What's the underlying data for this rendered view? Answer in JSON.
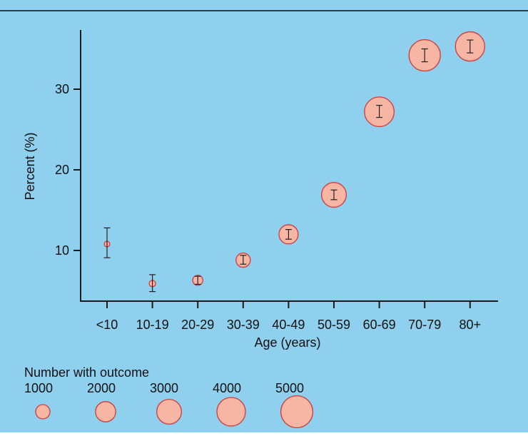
{
  "colors": {
    "background": "#8fd0ee",
    "bubble_fill": "#f7b6a4",
    "bubble_stroke": "#d23a3a",
    "axis": "#1a1a1a",
    "top_rule": "#111111"
  },
  "chart_data": {
    "type": "scatter",
    "title": "",
    "xlabel": "Age (years)",
    "ylabel": "Percent (%)",
    "categories": [
      "<10",
      "10-19",
      "20-29",
      "30-39",
      "40-49",
      "50-59",
      "60-69",
      "70-79",
      "80+"
    ],
    "ylim": [
      3.5,
      38
    ],
    "yticks": [
      10,
      20,
      30
    ],
    "values": [
      10.8,
      5.9,
      6.3,
      8.8,
      12.0,
      16.9,
      27.2,
      34.2,
      35.3
    ],
    "ci_low": [
      9.1,
      4.9,
      5.8,
      8.3,
      11.4,
      16.3,
      26.5,
      33.4,
      34.5
    ],
    "ci_high": [
      12.8,
      7.0,
      6.8,
      9.4,
      12.6,
      17.5,
      28.0,
      35.0,
      36.1
    ],
    "n_with_outcome": [
      150,
      200,
      500,
      1000,
      1800,
      3000,
      4300,
      4800,
      4200
    ],
    "grid": false,
    "size_legend": {
      "title": "Number with outcome",
      "labels": [
        "1000",
        "2000",
        "3000",
        "4000",
        "5000"
      ],
      "values": [
        1000,
        2000,
        3000,
        4000,
        5000
      ]
    }
  }
}
